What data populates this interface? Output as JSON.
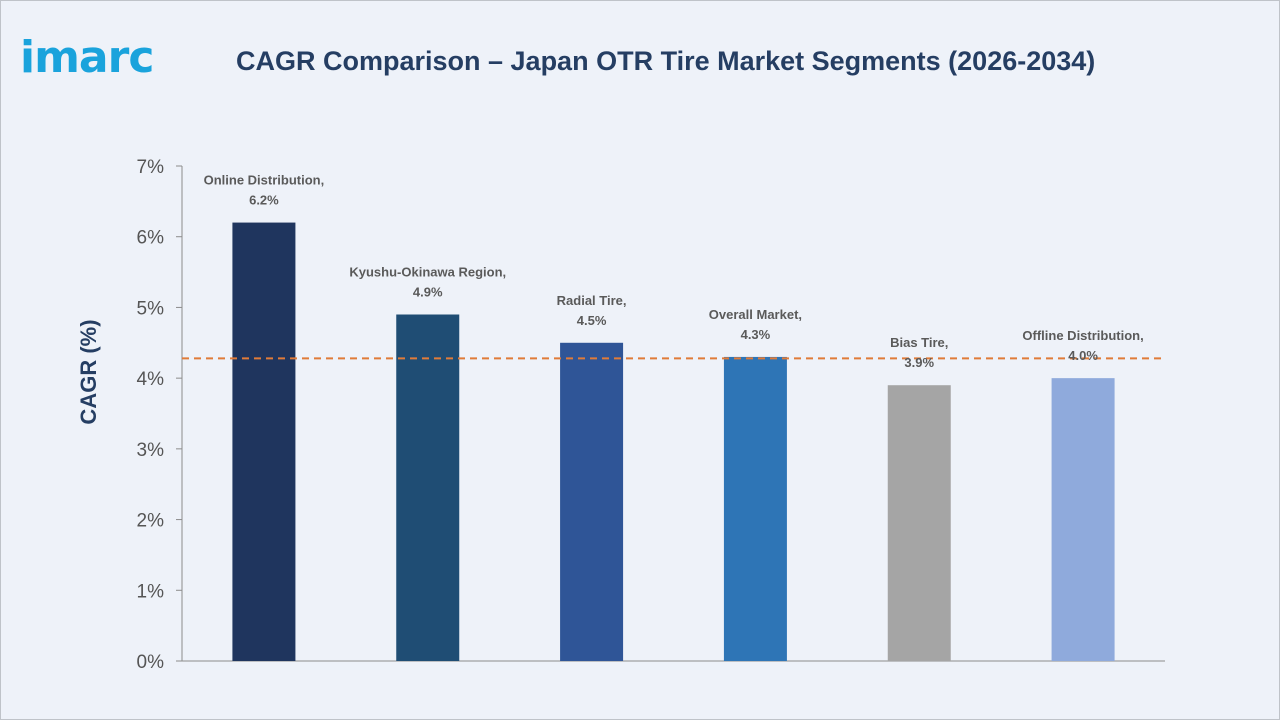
{
  "header": {
    "logo_text": "imarc",
    "title": "CAGR Comparison – Japan OTR Tire Market Segments (2026-2034)"
  },
  "colors": {
    "logo": "#1aa3dc",
    "title": "#253e63",
    "reference_line": "#e07b39",
    "axis": "#8c8c8c"
  },
  "chart_data": {
    "type": "bar",
    "title": "CAGR Comparison – Japan OTR Tire Market Segments (2026-2034)",
    "xlabel": "",
    "ylabel": "CAGR (%)",
    "ylim": [
      0,
      7
    ],
    "yticks": [
      0,
      1,
      2,
      3,
      4,
      5,
      6,
      7
    ],
    "ytick_suffix": "%",
    "grid": false,
    "legend": "none",
    "categories": [
      "Online Distribution",
      "Kyushu-Okinawa Region",
      "Radial Tire",
      "Overall Market",
      "Bias Tire",
      "Offline Distribution"
    ],
    "values": [
      6.2,
      4.9,
      4.5,
      4.3,
      3.9,
      4.0
    ],
    "data_labels": [
      [
        "Online Distribution,",
        "6.2%"
      ],
      [
        "Kyushu-Okinawa Region,",
        "4.9%"
      ],
      [
        "Radial Tire,",
        "4.5%"
      ],
      [
        "Overall Market,",
        "4.3%"
      ],
      [
        "Bias Tire,",
        "3.9%"
      ],
      [
        "Offline Distribution,",
        "4.0%"
      ]
    ],
    "bar_colors": [
      "#1f355e",
      "#1f4d74",
      "#2f5597",
      "#2e75b6",
      "#a5a5a5",
      "#8faadc"
    ],
    "reference_line": {
      "value": 4.28,
      "style": "dashed"
    }
  }
}
